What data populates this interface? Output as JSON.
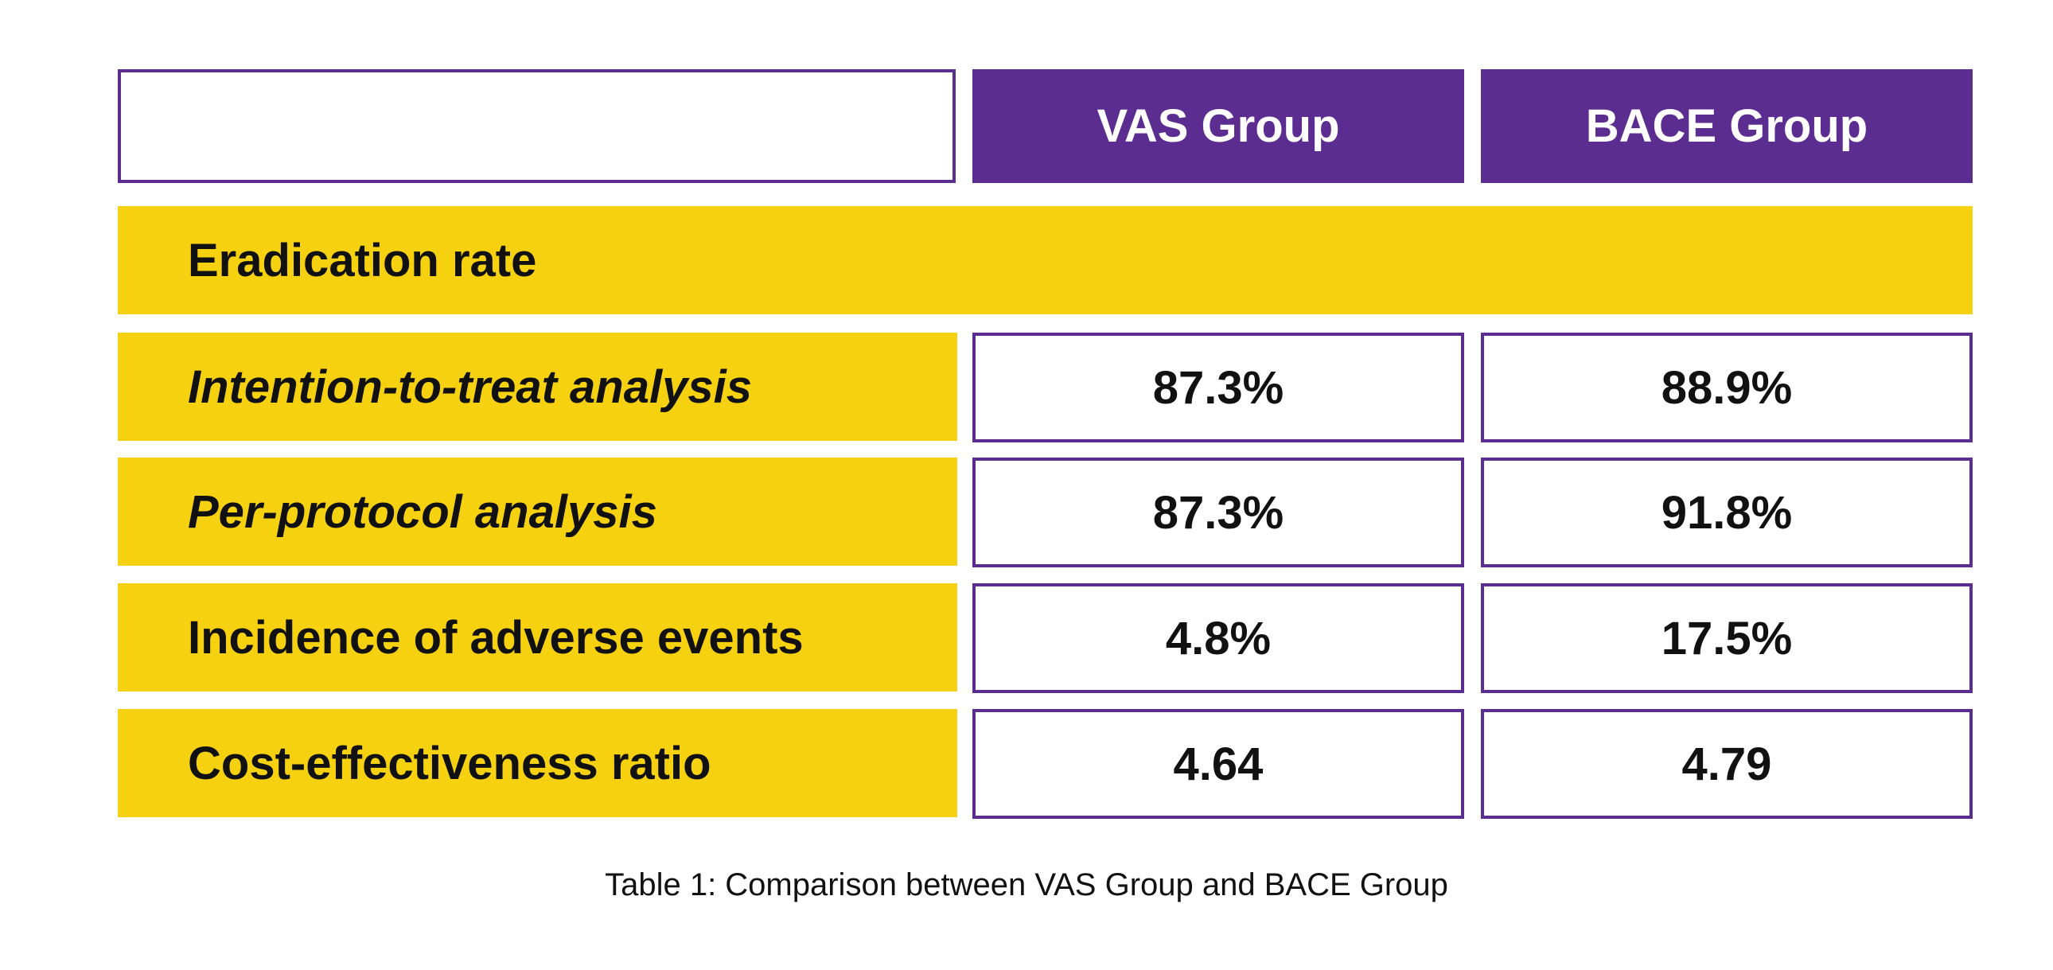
{
  "table": {
    "headers": [
      "VAS Group",
      "BACE Group"
    ],
    "section": "Eradication rate",
    "rows": [
      {
        "label": "Intention-to-treat analysis",
        "vas": "87.3%",
        "bace": "88.9%"
      },
      {
        "label": "Per-protocol analysis",
        "vas": "87.3%",
        "bace": "91.8%"
      },
      {
        "label": "Incidence of adverse events",
        "vas": "4.8%",
        "bace": "17.5%"
      },
      {
        "label": "Cost-effectiveness ratio",
        "vas": "4.64",
        "bace": "4.79"
      }
    ]
  },
  "caption": "Table 1: Comparison between VAS Group and BACE Group",
  "colors": {
    "header_purple": "#5c2d91",
    "label_yellow": "#f6d10f",
    "text": "#111111"
  }
}
